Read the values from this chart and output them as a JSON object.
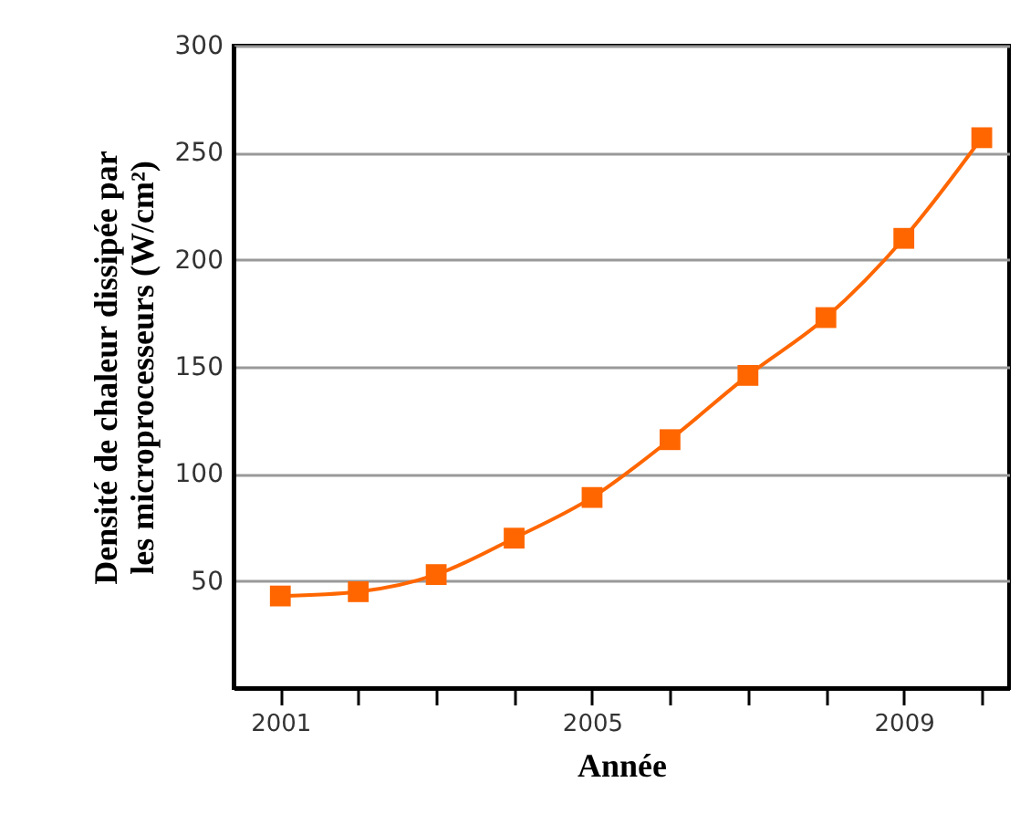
{
  "chart_data": {
    "type": "line",
    "xlabel": "Année",
    "ylabel": "Densité de chaleur dissipée par les microprocesseurs (W/cm²)",
    "x": [
      2001,
      2002,
      2003,
      2004,
      2005,
      2006,
      2007,
      2008,
      2009,
      2010
    ],
    "series": [
      {
        "color": "#ff6600",
        "values": [
          43,
          45,
          53,
          70,
          89,
          116,
          146,
          173,
          210,
          257
        ]
      }
    ],
    "xlim": [
      2000.4,
      2010.35
    ],
    "xticks": [
      2001,
      {
        "value": 2002,
        "label": null
      },
      {
        "value": 2003,
        "label": null
      },
      {
        "value": 2004,
        "label": null
      },
      2005,
      {
        "value": 2006,
        "label": null
      },
      {
        "value": 2007,
        "label": null
      },
      {
        "value": 2008,
        "label": null
      },
      2009,
      {
        "value": 2010,
        "label": null
      }
    ],
    "ylim": [
      0,
      300
    ],
    "yticks": [
      50,
      100,
      150,
      200,
      250,
      300
    ],
    "grid": "y",
    "marker": "square",
    "line_style": "solid"
  }
}
